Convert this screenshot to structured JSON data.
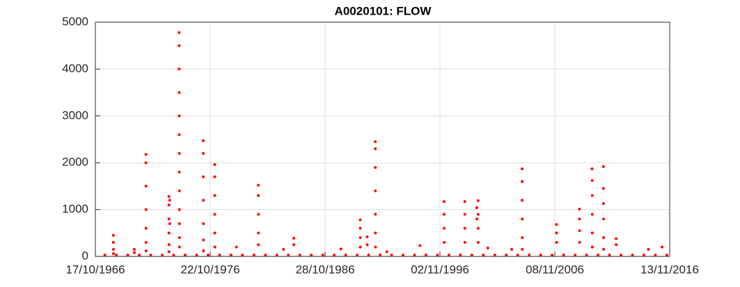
{
  "chart_data": {
    "type": "scatter",
    "title": "A0020101: FLOW",
    "color": "#ff0000",
    "grid": true,
    "xlim": [
      "17/10/1966",
      "13/11/2016"
    ],
    "xticks": [
      "17/10/1966",
      "22/10/1976",
      "28/10/1986",
      "02/11/1996",
      "08/11/2006",
      "13/11/2016"
    ],
    "ylim": [
      0,
      5000
    ],
    "yticks": [
      0,
      1000,
      2000,
      3000,
      4000,
      5000
    ],
    "x": [
      "12/05/1968",
      "13/05/1968",
      "14/05/1968",
      "15/05/1968",
      "10/03/1970",
      "11/03/1970",
      "15/03/1971",
      "16/03/1971",
      "17/03/1971",
      "18/03/1971",
      "19/03/1971",
      "20/03/1971",
      "21/03/1971",
      "15/03/1973",
      "16/03/1973",
      "17/03/1973",
      "18/03/1973",
      "19/03/1973",
      "20/03/1973",
      "10/04/1973",
      "11/04/1973",
      "05/02/1974",
      "06/02/1974",
      "07/02/1974",
      "08/02/1974",
      "09/02/1974",
      "10/02/1974",
      "11/02/1974",
      "12/02/1974",
      "13/02/1974",
      "14/02/1974",
      "15/02/1974",
      "16/02/1974",
      "17/02/1974",
      "15/03/1976",
      "16/03/1976",
      "17/03/1976",
      "18/03/1976",
      "19/03/1976",
      "20/03/1976",
      "21/03/1976",
      "15/03/1977",
      "16/03/1977",
      "17/03/1977",
      "18/03/1977",
      "19/03/1977",
      "20/03/1977",
      "05/02/1979",
      "01/01/1981",
      "02/01/1981",
      "03/01/1981",
      "04/01/1981",
      "05/01/1981",
      "15/03/1983",
      "05/02/1984",
      "06/02/1984",
      "15/03/1988",
      "20/11/1989",
      "21/11/1989",
      "22/11/1989",
      "23/11/1989",
      "01/07/1990",
      "02/07/1990",
      "15/03/1991",
      "16/03/1991",
      "17/03/1991",
      "18/03/1991",
      "19/03/1991",
      "20/03/1991",
      "21/03/1991",
      "15/03/1992",
      "05/02/1995",
      "15/03/1997",
      "16/03/1997",
      "17/03/1997",
      "18/03/1997",
      "01/01/1999",
      "02/01/1999",
      "03/01/1999",
      "04/01/1999",
      "20/01/2000",
      "21/01/2000",
      "01/03/2000",
      "02/03/2000",
      "03/03/2000",
      "04/03/2000",
      "05/01/2001",
      "05/02/2003",
      "01/01/2004",
      "02/01/2004",
      "03/01/2004",
      "04/01/2004",
      "05/01/2004",
      "06/01/2004",
      "01/01/2007",
      "02/01/2007",
      "03/01/2007",
      "01/01/2009",
      "02/01/2009",
      "03/01/2009",
      "04/01/2009",
      "05/02/2010",
      "10/02/2010",
      "11/02/2010",
      "12/02/2010",
      "13/02/2010",
      "14/02/2010",
      "05/02/2011",
      "06/02/2011",
      "07/02/2011",
      "08/02/2011",
      "09/02/2011",
      "10/02/2011",
      "15/03/2012",
      "16/03/2012",
      "05/01/2015",
      "15/03/2016",
      "15/08/1967",
      "15/08/1968",
      "15/08/1969",
      "15/08/1970",
      "15/08/1971",
      "15/08/1972",
      "15/08/1973",
      "15/08/1974",
      "15/08/1975",
      "15/08/1976",
      "15/08/1977",
      "15/08/1978",
      "15/08/1979",
      "15/08/1980",
      "15/08/1981",
      "15/08/1982",
      "15/08/1983",
      "15/08/1984",
      "15/08/1985",
      "15/08/1986",
      "15/08/1987",
      "15/08/1988",
      "15/08/1989",
      "15/08/1990",
      "15/08/1991",
      "15/08/1992",
      "15/08/1993",
      "15/08/1994",
      "15/08/1995",
      "15/08/1996",
      "15/08/1997",
      "15/08/1998",
      "15/08/1999",
      "15/08/2000",
      "15/08/2001",
      "15/08/2002",
      "15/08/2003",
      "15/08/2004",
      "15/08/2005",
      "15/08/2006",
      "15/08/2007",
      "15/08/2008",
      "15/08/2009",
      "15/08/2010",
      "15/08/2011",
      "15/08/2012",
      "15/08/2013",
      "15/08/2014",
      "15/08/2015",
      "15/08/2016"
    ],
    "values": [
      450,
      300,
      150,
      60,
      150,
      80,
      2180,
      2000,
      1500,
      1000,
      600,
      300,
      120,
      1280,
      1100,
      800,
      500,
      250,
      100,
      1200,
      700,
      4780,
      4500,
      4000,
      3500,
      3000,
      2600,
      2200,
      1800,
      1400,
      1000,
      700,
      400,
      200,
      2470,
      2200,
      1700,
      1200,
      700,
      350,
      120,
      1960,
      1700,
      1300,
      900,
      500,
      200,
      200,
      1520,
      1300,
      900,
      500,
      250,
      150,
      390,
      250,
      160,
      780,
      600,
      400,
      200,
      420,
      250,
      2450,
      2300,
      1900,
      1400,
      900,
      500,
      200,
      100,
      230,
      1170,
      900,
      600,
      300,
      1170,
      900,
      600,
      300,
      1040,
      800,
      1190,
      900,
      600,
      300,
      180,
      150,
      1870,
      1600,
      1200,
      800,
      400,
      150,
      680,
      500,
      300,
      1010,
      800,
      550,
      300,
      1870,
      1620,
      1300,
      900,
      500,
      200,
      1920,
      1450,
      1130,
      800,
      400,
      150,
      380,
      250,
      150,
      200,
      30,
      30,
      30,
      30,
      30,
      30,
      30,
      30,
      30,
      30,
      30,
      30,
      30,
      30,
      30,
      30,
      30,
      30,
      30,
      30,
      30,
      30,
      30,
      30,
      30,
      30,
      30,
      30,
      30,
      30,
      30,
      30,
      30,
      30,
      30,
      30,
      30,
      30,
      30,
      30,
      30,
      30,
      30,
      30,
      30,
      30,
      30,
      30,
      30,
      30
    ]
  }
}
